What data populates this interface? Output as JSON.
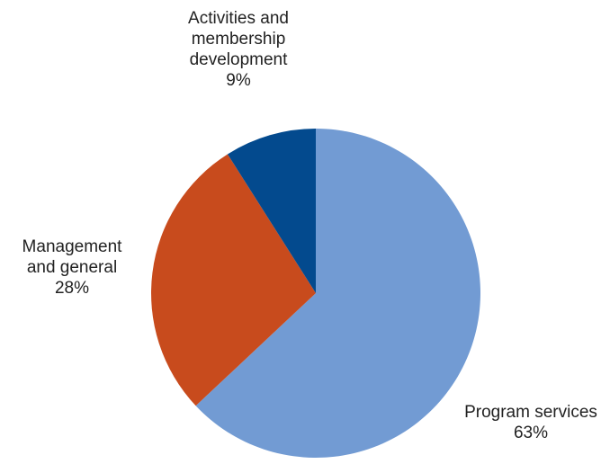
{
  "chart_data": {
    "type": "pie",
    "title": "",
    "slices": [
      {
        "label_lines": [
          "Program services"
        ],
        "value": 63,
        "percent_label": "63%",
        "color": "#729bd3"
      },
      {
        "label_lines": [
          "Management",
          "and general"
        ],
        "value": 28,
        "percent_label": "28%",
        "color": "#c84b1d"
      },
      {
        "label_lines": [
          "Activities and",
          "membership",
          "development"
        ],
        "value": 9,
        "percent_label": "9%",
        "color": "#034a8e"
      }
    ],
    "start_angle_deg": 0,
    "direction": "clockwise",
    "legend": "none"
  }
}
